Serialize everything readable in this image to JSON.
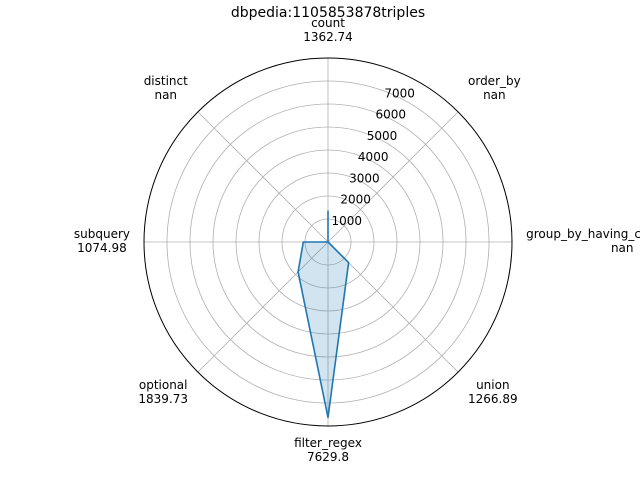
{
  "chart_data": {
    "type": "radar",
    "title": "dbpedia:1105853878triples",
    "categories": [
      "count",
      "order_by",
      "group_by_having_count_distinct",
      "union",
      "filter_regex",
      "optional",
      "subquery",
      "distinct"
    ],
    "value_labels": [
      "1362.74",
      "nan",
      "nan",
      "1266.89",
      "7629.8",
      "1839.73",
      "1074.98",
      "nan"
    ],
    "values": [
      1362.74,
      null,
      null,
      1266.89,
      7629.8,
      1839.73,
      1074.98,
      null
    ],
    "radial_ticks": [
      "1000",
      "2000",
      "3000",
      "4000",
      "5000",
      "6000",
      "7000"
    ],
    "rlim": [
      0,
      8000
    ],
    "line_color": "#1f77b4",
    "fill_color": "#1f77b4",
    "grid": true
  }
}
